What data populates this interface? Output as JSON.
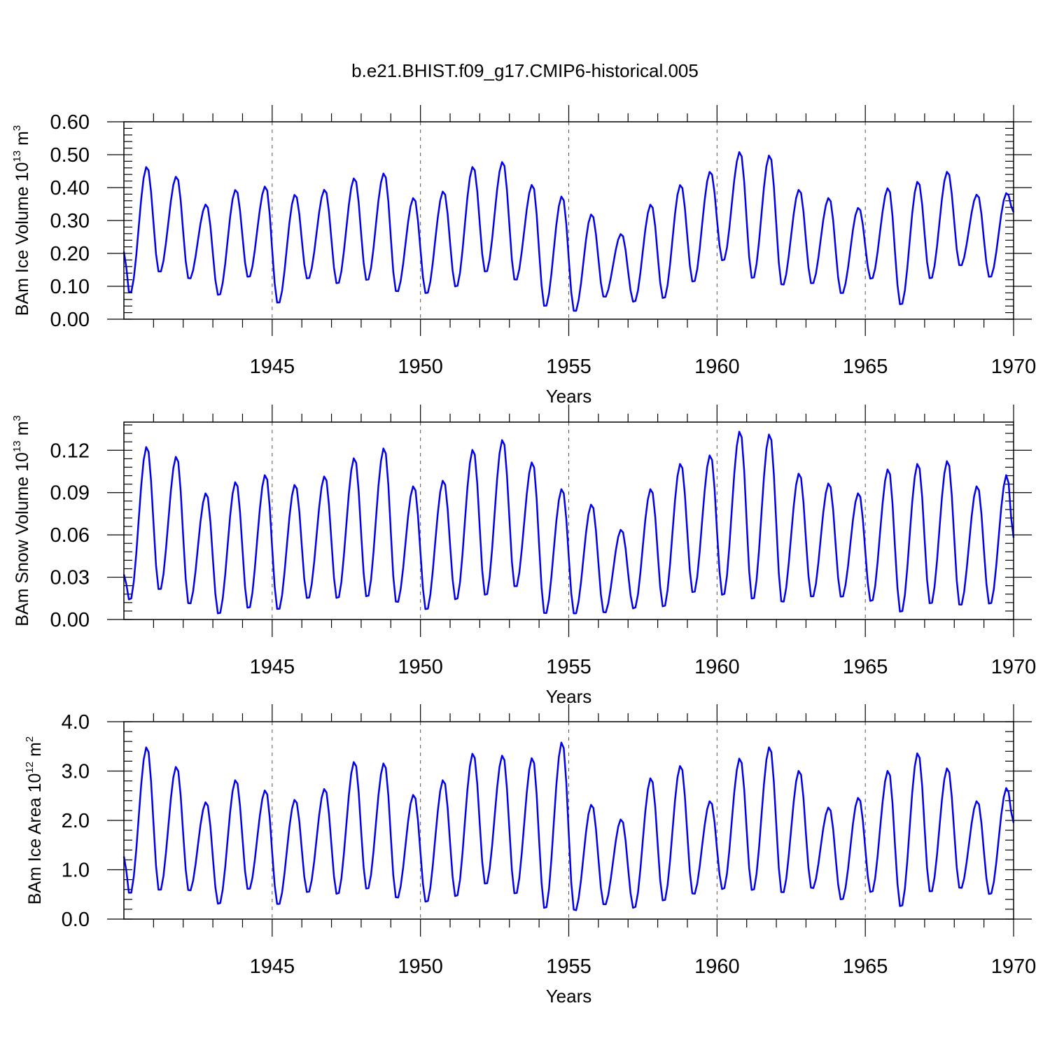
{
  "figure_title": "b.e21.BHIST.f09_g17.CMIP6-historical.005",
  "chart_data": [
    {
      "type": "line",
      "title": "b.e21.BHIST.f09_g17.CMIP6-historical.005",
      "xlabel": "Years",
      "ylabel": {
        "main": "BAm Ice Volume 10",
        "sup": "13",
        "unit": " m",
        "unit_sup": "3"
      },
      "xlim": [
        1940,
        1970
      ],
      "ylim": [
        0,
        0.6
      ],
      "yticks": [
        "0.00",
        "0.10",
        "0.20",
        "0.30",
        "0.40",
        "0.50",
        "0.60"
      ],
      "ytick_values": [
        0,
        0.1,
        0.2,
        0.3,
        0.4,
        0.5,
        0.6
      ],
      "xticks": [
        "1945",
        "1950",
        "1955",
        "1960",
        "1965",
        "1970"
      ],
      "xtick_values": [
        1945,
        1950,
        1955,
        1960,
        1965,
        1970
      ],
      "vertical_gridlines": [
        1945,
        1950,
        1955,
        1960,
        1965
      ],
      "line_color": "#0000ee",
      "series": [
        {
          "name": "BAm Ice Volume",
          "x_start": 1940,
          "step": 1,
          "min": [
            0.075,
            0.14,
            0.12,
            0.07,
            0.125,
            0.045,
            0.12,
            0.105,
            0.115,
            0.08,
            0.075,
            0.095,
            0.14,
            0.115,
            0.035,
            0.02,
            0.065,
            0.05,
            0.06,
            0.11,
            0.175,
            0.12,
            0.1,
            0.105,
            0.075,
            0.12,
            0.04,
            0.12,
            0.16,
            0.125
          ],
          "max": [
            0.465,
            0.435,
            0.35,
            0.395,
            0.405,
            0.38,
            0.395,
            0.43,
            0.445,
            0.37,
            0.39,
            0.465,
            0.48,
            0.41,
            0.375,
            0.32,
            0.26,
            0.35,
            0.41,
            0.45,
            0.51,
            0.5,
            0.395,
            0.37,
            0.34,
            0.4,
            0.42,
            0.45,
            0.38,
            0.385
          ],
          "start_value": 0.205,
          "end_value": 0.325
        }
      ]
    },
    {
      "type": "line",
      "xlabel": "Years",
      "ylabel": {
        "main": "BAm Snow Volume 10",
        "sup": "13",
        "unit": " m",
        "unit_sup": "3"
      },
      "xlim": [
        1940,
        1970
      ],
      "ylim": [
        0,
        0.14
      ],
      "yticks": [
        "0.00",
        "0.03",
        "0.06",
        "0.09",
        "0.12"
      ],
      "ytick_values": [
        0,
        0.03,
        0.06,
        0.09,
        0.12
      ],
      "xticks": [
        "1945",
        "1950",
        "1955",
        "1960",
        "1965",
        "1970"
      ],
      "xtick_values": [
        1945,
        1950,
        1955,
        1960,
        1965,
        1970
      ],
      "vertical_gridlines": [
        1945,
        1950,
        1955,
        1960,
        1965
      ],
      "line_color": "#0000ee",
      "series": [
        {
          "name": "BAm Snow Volume",
          "x_start": 1940,
          "step": 1,
          "min": [
            0.013,
            0.02,
            0.01,
            0.003,
            0.007,
            0.006,
            0.014,
            0.014,
            0.015,
            0.011,
            0.006,
            0.013,
            0.016,
            0.022,
            0.003,
            0.003,
            0.004,
            0.007,
            0.008,
            0.018,
            0.016,
            0.013,
            0.011,
            0.015,
            0.015,
            0.012,
            0.004,
            0.01,
            0.009,
            0.01
          ],
          "max": [
            0.123,
            0.116,
            0.09,
            0.098,
            0.103,
            0.096,
            0.102,
            0.115,
            0.122,
            0.095,
            0.099,
            0.121,
            0.128,
            0.112,
            0.093,
            0.082,
            0.064,
            0.093,
            0.111,
            0.117,
            0.134,
            0.132,
            0.104,
            0.097,
            0.09,
            0.107,
            0.111,
            0.113,
            0.095,
            0.103
          ],
          "start_value": 0.032,
          "end_value": 0.058
        }
      ]
    },
    {
      "type": "line",
      "xlabel": "Years",
      "ylabel": {
        "main": "BAm Ice Area 10",
        "sup": "12",
        "unit": " m",
        "unit_sup": "2"
      },
      "xlim": [
        1940,
        1970
      ],
      "ylim": [
        0,
        4.0
      ],
      "yticks": [
        "0.0",
        "1.0",
        "2.0",
        "3.0",
        "4.0"
      ],
      "ytick_values": [
        0,
        1,
        2,
        3,
        4
      ],
      "xticks": [
        "1945",
        "1950",
        "1955",
        "1960",
        "1965",
        "1970"
      ],
      "xtick_values": [
        1945,
        1950,
        1955,
        1960,
        1965,
        1970
      ],
      "vertical_gridlines": [
        1945,
        1950,
        1955,
        1960,
        1965
      ],
      "line_color": "#0000ee",
      "series": [
        {
          "name": "BAm Ice Area",
          "x_start": 1940,
          "step": 1,
          "min": [
            0.48,
            0.55,
            0.55,
            0.28,
            0.58,
            0.27,
            0.52,
            0.48,
            0.58,
            0.4,
            0.32,
            0.43,
            0.68,
            0.48,
            0.18,
            0.14,
            0.27,
            0.2,
            0.34,
            0.48,
            0.58,
            0.55,
            0.5,
            0.6,
            0.37,
            0.52,
            0.22,
            0.52,
            0.6,
            0.48
          ],
          "max": [
            3.5,
            3.1,
            2.38,
            2.83,
            2.62,
            2.43,
            2.65,
            3.2,
            3.17,
            2.53,
            2.83,
            3.37,
            3.33,
            3.28,
            3.6,
            2.33,
            2.03,
            2.87,
            3.12,
            2.4,
            3.27,
            3.5,
            3.02,
            2.27,
            2.47,
            3.02,
            3.38,
            3.07,
            2.4,
            2.67
          ],
          "start_value": 1.27,
          "end_value": 1.95
        }
      ]
    }
  ]
}
